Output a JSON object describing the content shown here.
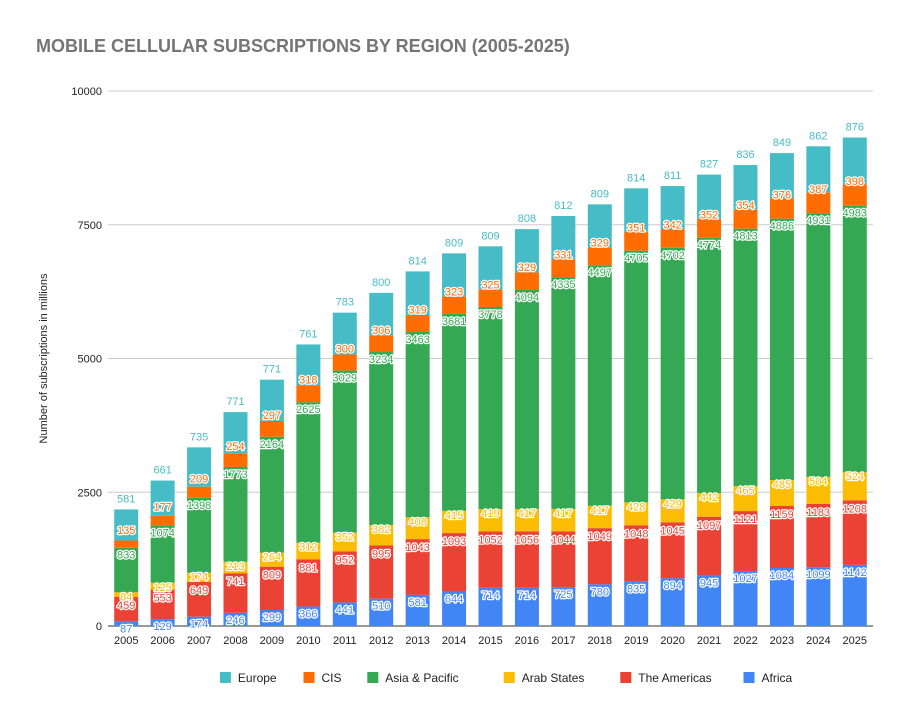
{
  "chart_data": {
    "type": "bar",
    "stacked": true,
    "title": "MOBILE CELLULAR SUBSCRIPTIONS BY REGION (2005-2025)",
    "ylabel": "Number of subscriptions in millions",
    "xlabel": "",
    "ylim": [
      0,
      10000
    ],
    "yticks": [
      0,
      2500,
      5000,
      7500,
      10000
    ],
    "grid": true,
    "legend": "bottom",
    "categories": [
      "2005",
      "2006",
      "2007",
      "2008",
      "2009",
      "2010",
      "2011",
      "2012",
      "2013",
      "2014",
      "2015",
      "2016",
      "2017",
      "2018",
      "2019",
      "2020",
      "2021",
      "2022",
      "2023",
      "2024",
      "2025"
    ],
    "series": [
      {
        "name": "Africa",
        "color": "#4285f4",
        "label_color": "#ffffff",
        "values": [
          87,
          129,
          174,
          246,
          299,
          366,
          441,
          510,
          581,
          644,
          714,
          714,
          725,
          780,
          835,
          894,
          945,
          1027,
          1084,
          1099,
          1142
        ]
      },
      {
        "name": "The Americas",
        "color": "#ea4335",
        "label_color": "#ffffff",
        "values": [
          459,
          553,
          649,
          741,
          809,
          881,
          952,
          995,
          1043,
          1093,
          1052,
          1056,
          1044,
          1049,
          1048,
          1045,
          1097,
          1121,
          1159,
          1183,
          1208
        ]
      },
      {
        "name": "Arab States",
        "color": "#fbbc04",
        "label_color": "#ffffff",
        "values": [
          84,
          125,
          174,
          213,
          264,
          312,
          352,
          382,
          408,
          415,
          419,
          417,
          417,
          417,
          428,
          429,
          442,
          465,
          485,
          504,
          524
        ]
      },
      {
        "name": "Asia & Pacific",
        "color": "#34a853",
        "label_color": "#ffffff",
        "values": [
          833,
          1074,
          1398,
          1773,
          2164,
          2625,
          3029,
          3234,
          3463,
          3681,
          3778,
          4094,
          4335,
          4497,
          4705,
          4702,
          4774,
          4813,
          4886,
          4931,
          4983
        ]
      },
      {
        "name": "CIS",
        "color": "#ff6d01",
        "label_color": "#ffffff",
        "values": [
          135,
          177,
          209,
          254,
          297,
          318,
          300,
          306,
          319,
          323,
          325,
          329,
          331,
          329,
          351,
          342,
          352,
          354,
          376,
          387,
          398
        ]
      },
      {
        "name": "Europe",
        "color": "#46bdc6",
        "label_color": "#ffffff",
        "values": [
          581,
          661,
          735,
          771,
          771,
          761,
          783,
          800,
          814,
          809,
          809,
          808,
          812,
          809,
          814,
          811,
          827,
          836,
          849,
          862,
          876
        ]
      }
    ],
    "legend_order": [
      "Europe",
      "CIS",
      "Asia & Pacific",
      "Arab States",
      "The Americas",
      "Africa"
    ]
  }
}
